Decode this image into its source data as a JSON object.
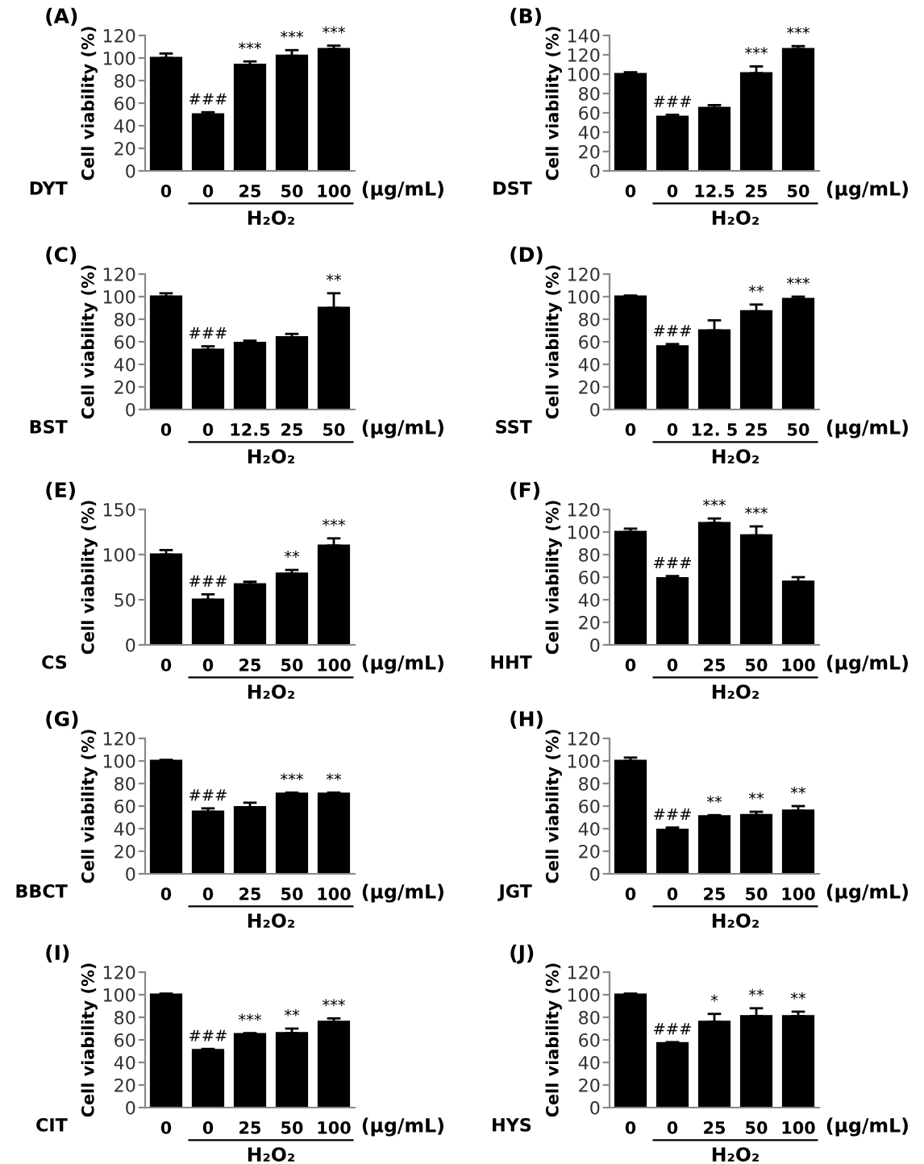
{
  "chart_data": [
    {
      "type": "bar",
      "title": "(A)",
      "ylabel": "Cell viability (%)",
      "xlabel": "H₂O₂",
      "annotations": [
        "DYT",
        "(μg/mL)"
      ],
      "categories": [
        "0",
        "0",
        "25",
        "50",
        "100"
      ],
      "values": [
        100,
        50,
        94,
        102,
        108
      ],
      "errors": [
        4,
        2,
        3,
        5,
        3
      ],
      "value_labels": [
        null,
        "###",
        "***",
        "***",
        "***"
      ],
      "color": "#000000",
      "ylim": [
        0,
        120
      ],
      "yticks": [
        0,
        20,
        40,
        60,
        80,
        100,
        120
      ]
    },
    {
      "type": "bar",
      "title": "(B)",
      "ylabel": "Cell viability (%)",
      "xlabel": "H₂O₂",
      "annotations": [
        "DST",
        "(μg/mL)"
      ],
      "categories": [
        "0",
        "0",
        "12.5",
        "25",
        "50"
      ],
      "values": [
        100,
        56,
        65,
        101,
        126
      ],
      "errors": [
        2,
        2,
        3,
        7,
        3
      ],
      "value_labels": [
        null,
        "###",
        null,
        "***",
        "***"
      ],
      "color": "#000000",
      "ylim": [
        0,
        140
      ],
      "yticks": [
        0,
        20,
        40,
        60,
        80,
        100,
        120,
        140
      ]
    },
    {
      "type": "bar",
      "title": "(C)",
      "ylabel": "Cell viability (%)",
      "xlabel": "H₂O₂",
      "annotations": [
        "BST",
        "(μg/mL)"
      ],
      "categories": [
        "0",
        "0",
        "12.5",
        "25",
        "50"
      ],
      "values": [
        100,
        53,
        59,
        64,
        90
      ],
      "errors": [
        3,
        3,
        2,
        3,
        13
      ],
      "value_labels": [
        null,
        "###",
        null,
        null,
        "**"
      ],
      "color": "#000000",
      "ylim": [
        0,
        120
      ],
      "yticks": [
        0,
        20,
        40,
        60,
        80,
        100,
        120
      ]
    },
    {
      "type": "bar",
      "title": "(D)",
      "ylabel": "Cell viability (%)",
      "xlabel": "H₂O₂",
      "annotations": [
        "SST",
        "(μg/mL)"
      ],
      "categories": [
        "0",
        "0",
        "12. 5",
        "25",
        "50"
      ],
      "values": [
        100,
        56,
        70,
        87,
        98
      ],
      "errors": [
        1,
        2,
        9,
        6,
        2
      ],
      "value_labels": [
        null,
        "###",
        null,
        "**",
        "***"
      ],
      "color": "#000000",
      "ylim": [
        0,
        120
      ],
      "yticks": [
        0,
        20,
        40,
        60,
        80,
        100,
        120
      ]
    },
    {
      "type": "bar",
      "title": "(E)",
      "ylabel": "Cell viability (%)",
      "xlabel": "H₂O₂",
      "annotations": [
        "CS",
        "(μg/mL)"
      ],
      "categories": [
        "0",
        "0",
        "25",
        "50",
        "100"
      ],
      "values": [
        100,
        50,
        67,
        79,
        110
      ],
      "errors": [
        5,
        6,
        3,
        4,
        8
      ],
      "value_labels": [
        null,
        "###",
        null,
        "**",
        "***"
      ],
      "color": "#000000",
      "ylim": [
        0,
        150
      ],
      "yticks": [
        0,
        50,
        100,
        150
      ]
    },
    {
      "type": "bar",
      "title": "(F)",
      "ylabel": "Cell viability (%)",
      "xlabel": "H₂O₂",
      "annotations": [
        "HHT",
        "(μg/mL)"
      ],
      "categories": [
        "0",
        "0",
        "25",
        "50",
        "100"
      ],
      "values": [
        100,
        59,
        108,
        97,
        56
      ],
      "errors": [
        3,
        2,
        4,
        8,
        4
      ],
      "value_labels": [
        null,
        "###",
        "***",
        "***",
        null
      ],
      "color": "#000000",
      "ylim": [
        0,
        120
      ],
      "yticks": [
        0,
        20,
        40,
        60,
        80,
        100,
        120
      ]
    },
    {
      "type": "bar",
      "title": "(G)",
      "ylabel": "Cell viability (%)",
      "xlabel": "H₂O₂",
      "annotations": [
        "BBCT",
        "(μg/mL)"
      ],
      "categories": [
        "0",
        "0",
        "25",
        "50",
        "100"
      ],
      "values": [
        100,
        55,
        59,
        71,
        71
      ],
      "errors": [
        1,
        3,
        4,
        1,
        1
      ],
      "value_labels": [
        null,
        "###",
        null,
        "***",
        "**"
      ],
      "color": "#000000",
      "ylim": [
        0,
        120
      ],
      "yticks": [
        0,
        20,
        40,
        60,
        80,
        100,
        120
      ]
    },
    {
      "type": "bar",
      "title": "(H)",
      "ylabel": "Cell viability (%)",
      "xlabel": "H₂O₂",
      "annotations": [
        "JGT",
        "(μg/mL)"
      ],
      "categories": [
        "0",
        "0",
        "25",
        "50",
        "100"
      ],
      "values": [
        100,
        39,
        51,
        52,
        56
      ],
      "errors": [
        3,
        2,
        1,
        3,
        4
      ],
      "value_labels": [
        null,
        "###",
        "**",
        "**",
        "**"
      ],
      "color": "#000000",
      "ylim": [
        0,
        120
      ],
      "yticks": [
        0,
        20,
        40,
        60,
        80,
        100,
        120
      ]
    },
    {
      "type": "bar",
      "title": "(I)",
      "ylabel": "Cell viability (%)",
      "xlabel": "H₂O₂",
      "annotations": [
        "CIT",
        "(μg/mL)"
      ],
      "categories": [
        "0",
        "0",
        "25",
        "50",
        "100"
      ],
      "values": [
        100,
        51,
        65,
        66,
        76
      ],
      "errors": [
        1,
        1,
        1,
        4,
        3
      ],
      "value_labels": [
        null,
        "###",
        "***",
        "**",
        "***"
      ],
      "color": "#000000",
      "ylim": [
        0,
        120
      ],
      "yticks": [
        0,
        20,
        40,
        60,
        80,
        100,
        120
      ]
    },
    {
      "type": "bar",
      "title": "(J)",
      "ylabel": "Cell viability (%)",
      "xlabel": "H₂O₂",
      "annotations": [
        "HYS",
        "(μg/mL)"
      ],
      "categories": [
        "0",
        "0",
        "25",
        "50",
        "100"
      ],
      "values": [
        100,
        57,
        76,
        81,
        81
      ],
      "errors": [
        1,
        1,
        7,
        7,
        4
      ],
      "value_labels": [
        null,
        "###",
        "*",
        "**",
        "**"
      ],
      "color": "#000000",
      "ylim": [
        0,
        120
      ],
      "yticks": [
        0,
        20,
        40,
        60,
        80,
        100,
        120
      ]
    }
  ]
}
